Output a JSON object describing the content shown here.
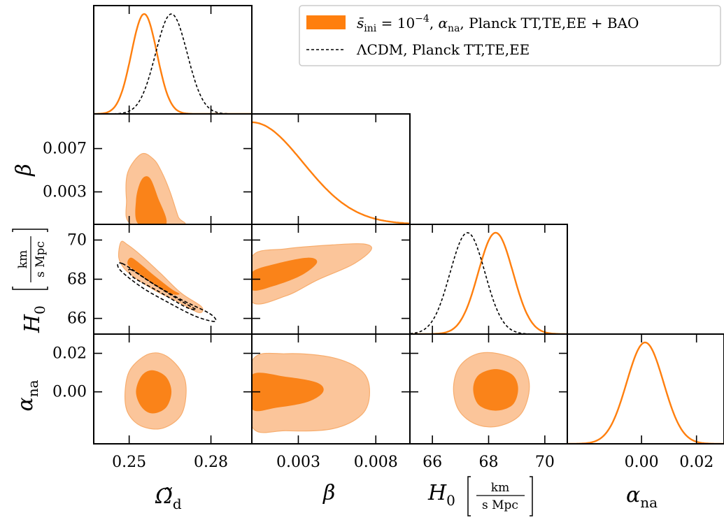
{
  "chart_data": {
    "type": "triangle-corner",
    "parameters": [
      {
        "key": "omega",
        "ticks": [
          {
            "v": 0.25,
            "label": "0.25"
          },
          {
            "v": 0.28,
            "label": "0.28"
          }
        ],
        "range": [
          0.237,
          0.295
        ]
      },
      {
        "key": "beta",
        "ticks": [
          {
            "v": 0.003,
            "label": "0.003"
          },
          {
            "v": 0.008,
            "label": "0.008"
          }
        ],
        "range": [
          0.0,
          0.0102
        ],
        "yticks": [
          {
            "v": 0.007,
            "label": "0.007"
          },
          {
            "v": 0.003,
            "label": "0.003"
          }
        ]
      },
      {
        "key": "H0",
        "ticks": [
          {
            "v": 66,
            "label": "66"
          },
          {
            "v": 68,
            "label": "68"
          },
          {
            "v": 70,
            "label": "70"
          }
        ],
        "range": [
          65.2,
          70.8
        ],
        "yticks": [
          {
            "v": 70,
            "label": "70"
          },
          {
            "v": 68,
            "label": "68"
          },
          {
            "v": 66,
            "label": "66"
          }
        ]
      },
      {
        "key": "alpha",
        "ticks": [
          {
            "v": 0.0,
            "label": "0.00"
          },
          {
            "v": 0.02,
            "label": "0.02"
          }
        ],
        "range": [
          -0.027,
          0.03
        ],
        "yticks": [
          {
            "v": 0.02,
            "label": "0.02"
          },
          {
            "v": 0.0,
            "label": "0.00"
          }
        ]
      }
    ],
    "series": [
      {
        "name": "s_ini = 10^-4, alpha_na, Planck TT,TE,EE + BAO",
        "color": "#ff7f0e",
        "fill_outer": "#fbc59a",
        "fill_inner": "#fa8319",
        "marginals": {
          "omega": {
            "type": "gauss",
            "mu": 0.2555,
            "sigma": 0.0047
          },
          "beta": {
            "type": "halfgauss",
            "sigma": 0.0033
          },
          "H0": {
            "type": "gauss",
            "mu": 68.25,
            "sigma": 0.62
          },
          "alpha": {
            "type": "gauss",
            "mu": 0.0013,
            "sigma": 0.0067
          }
        },
        "contours": [
          {
            "row": "beta",
            "col": "omega",
            "outer": [
              [
                0.251,
                0.0
              ],
              [
                0.249,
                0.0023
              ],
              [
                0.2495,
                0.0048
              ],
              [
                0.2545,
                0.0065
              ],
              [
                0.259,
                0.006
              ],
              [
                0.262,
                0.0048
              ],
              [
                0.265,
                0.003
              ],
              [
                0.268,
                0.0007
              ],
              [
                0.2695,
                0.0
              ]
            ],
            "inner": [
              [
                0.2535,
                0.0
              ],
              [
                0.2525,
                0.0022
              ],
              [
                0.2545,
                0.0041
              ],
              [
                0.2575,
                0.0043
              ],
              [
                0.2605,
                0.0025
              ],
              [
                0.2635,
                0.0
              ]
            ]
          },
          {
            "row": "H0",
            "col": "omega",
            "outer": [
              [
                0.247,
                69.9
              ],
              [
                0.2495,
                69.75
              ],
              [
                0.2545,
                69.2
              ],
              [
                0.2615,
                68.3
              ],
              [
                0.269,
                67.3
              ],
              [
                0.2765,
                66.6
              ],
              [
                0.2755,
                66.3
              ],
              [
                0.268,
                66.85
              ],
              [
                0.2605,
                67.35
              ],
              [
                0.2535,
                67.95
              ],
              [
                0.2485,
                68.5
              ],
              [
                0.2462,
                69.1
              ]
            ],
            "inner": [
              [
                0.2505,
                69.1
              ],
              [
                0.2535,
                68.85
              ],
              [
                0.2595,
                68.15
              ],
              [
                0.2655,
                67.5
              ],
              [
                0.2685,
                67.25
              ],
              [
                0.2655,
                67.25
              ],
              [
                0.2595,
                67.7
              ],
              [
                0.2535,
                68.3
              ],
              [
                0.2495,
                68.75
              ]
            ]
          },
          {
            "row": "H0",
            "col": "beta",
            "outer": [
              [
                0.0,
                69.15
              ],
              [
                0.0022,
                69.55
              ],
              [
                0.0052,
                69.75
              ],
              [
                0.0072,
                69.8
              ],
              [
                0.0077,
                69.5
              ],
              [
                0.0065,
                68.75
              ],
              [
                0.0042,
                67.95
              ],
              [
                0.0022,
                67.15
              ],
              [
                0.0,
                66.85
              ]
            ],
            "inner": [
              [
                0.0,
                68.35
              ],
              [
                0.0016,
                68.8
              ],
              [
                0.0036,
                69.1
              ],
              [
                0.0042,
                68.85
              ],
              [
                0.0032,
                68.2
              ],
              [
                0.0014,
                67.65
              ],
              [
                0.0,
                67.45
              ]
            ]
          },
          {
            "row": "alpha",
            "col": "omega",
            "outer": [
              [
                0.2485,
                0.0
              ],
              [
                0.2505,
                0.0118
              ],
              [
                0.2575,
                0.0198
              ],
              [
                0.2645,
                0.0178
              ],
              [
                0.2705,
                0.0062
              ],
              [
                0.2695,
                -0.0108
              ],
              [
                0.2625,
                -0.0188
              ],
              [
                0.2545,
                -0.0178
              ],
              [
                0.2495,
                -0.0108
              ]
            ],
            "inner": [
              [
                0.2525,
                0.0
              ],
              [
                0.2545,
                0.0082
              ],
              [
                0.2585,
                0.0112
              ],
              [
                0.2635,
                0.0078
              ],
              [
                0.2655,
                0.0
              ],
              [
                0.2635,
                -0.0082
              ],
              [
                0.2585,
                -0.0112
              ],
              [
                0.2545,
                -0.0078
              ]
            ]
          },
          {
            "row": "alpha",
            "col": "beta",
            "outer": [
              [
                0.0,
                0.0158
              ],
              [
                0.0022,
                0.0198
              ],
              [
                0.0052,
                0.0178
              ],
              [
                0.0071,
                0.0108
              ],
              [
                0.0076,
                0.0
              ],
              [
                0.0071,
                -0.0118
              ],
              [
                0.0052,
                -0.0192
              ],
              [
                0.0022,
                -0.0202
              ],
              [
                0.0,
                -0.0178
              ]
            ],
            "inner": [
              [
                0.0,
                0.0088
              ],
              [
                0.0022,
                0.0078
              ],
              [
                0.0042,
                0.0048
              ],
              [
                0.0046,
                0.0
              ],
              [
                0.0036,
                -0.0052
              ],
              [
                0.0016,
                -0.0082
              ],
              [
                0.0,
                -0.0088
              ]
            ]
          },
          {
            "row": "alpha",
            "col": "H0",
            "outer": [
              [
                66.75,
                0.0015
              ],
              [
                66.95,
                0.0128
              ],
              [
                67.55,
                0.0195
              ],
              [
                68.35,
                0.0198
              ],
              [
                69.15,
                0.0148
              ],
              [
                69.45,
                0.0028
              ],
              [
                69.15,
                -0.0115
              ],
              [
                68.35,
                -0.0178
              ],
              [
                67.55,
                -0.0168
              ],
              [
                66.95,
                -0.0098
              ]
            ],
            "inner": [
              [
                67.45,
                0.0015
              ],
              [
                67.65,
                0.0088
              ],
              [
                68.25,
                0.0118
              ],
              [
                68.85,
                0.0088
              ],
              [
                69.05,
                0.0015
              ],
              [
                68.85,
                -0.0068
              ],
              [
                68.25,
                -0.0098
              ],
              [
                67.65,
                -0.0068
              ]
            ]
          }
        ]
      },
      {
        "name": "LCDM, Planck TT,TE,EE",
        "color": "#000000",
        "dashed": true,
        "marginals": {
          "omega": {
            "type": "gauss",
            "mu": 0.2655,
            "sigma": 0.0058
          },
          "H0": {
            "type": "gauss",
            "mu": 67.25,
            "sigma": 0.62
          }
        },
        "contours": [
          {
            "row": "H0",
            "col": "omega",
            "outer": [
              [
                0.2475,
                68.8
              ],
              [
                0.2585,
                67.8
              ],
              [
                0.2685,
                67.0
              ],
              [
                0.2795,
                66.25
              ],
              [
                0.2815,
                65.85
              ],
              [
                0.2745,
                66.1
              ],
              [
                0.2645,
                66.8
              ],
              [
                0.2545,
                67.6
              ],
              [
                0.2465,
                68.5
              ]
            ],
            "inner": [
              [
                0.2505,
                68.5
              ],
              [
                0.2595,
                67.7
              ],
              [
                0.2695,
                66.85
              ],
              [
                0.2745,
                66.45
              ],
              [
                0.2705,
                66.6
              ],
              [
                0.2605,
                67.4
              ],
              [
                0.2515,
                68.1
              ]
            ]
          }
        ]
      }
    ],
    "legend": {
      "placement": "top-right"
    }
  },
  "labels": {
    "omega_x": "Ω̃",
    "omega_sub": "d",
    "beta": "β",
    "H0": "H",
    "H0_sub": "0",
    "alpha": "α",
    "alpha_sub": "na",
    "unit_num": "km",
    "unit_den": "s Mpc"
  },
  "legend_text": {
    "s1_base": "s̄",
    "s1_sub": "ini",
    "s1_eq": " = 10",
    "s1_exp": "−4",
    "s1_comma": ", ",
    "s1_alpha": "α",
    "s1_alpha_sub": "na",
    "s1_rest": ", Planck TT,TE,EE + BAO",
    "s2": "ΛCDM, Planck TT,TE,EE"
  }
}
